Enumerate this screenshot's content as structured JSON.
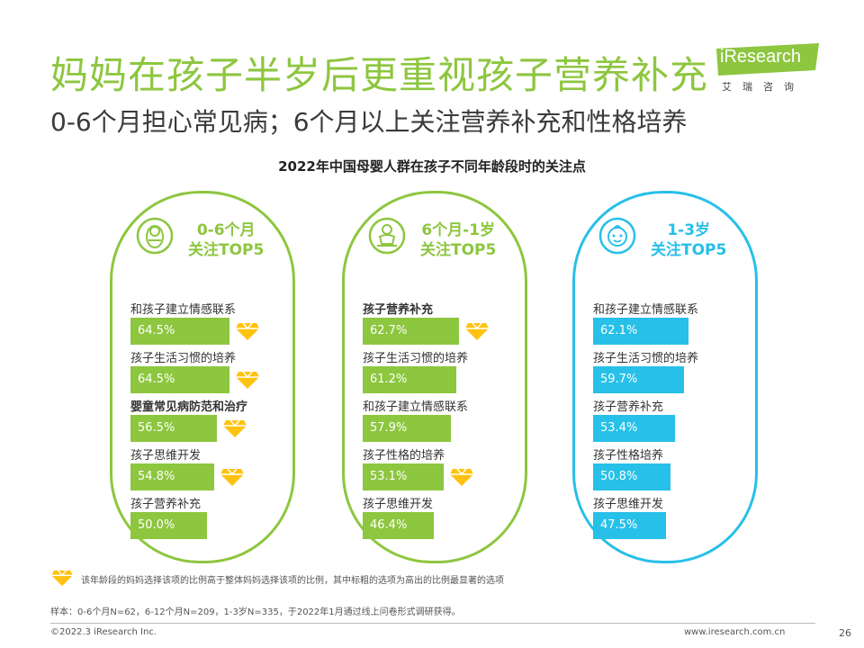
{
  "header": {
    "title": "妈妈在孩子半岁后更重视孩子营养补充",
    "subtitle": "0-6个月担心常见病；6个月以上关注营养补充和性格培养",
    "logo_word": "iResearch",
    "logo_cn": "艾瑞咨询"
  },
  "chart_data": {
    "type": "bar",
    "title": "2022年中国母婴人群在孩子不同年龄段时的关注点",
    "unit": "%",
    "xlim": [
      0,
      100
    ],
    "panels": [
      {
        "heading_line1": "0-6个月",
        "heading_line2": "关注TOP5",
        "icon": "swaddled-baby-icon",
        "color": "#8dc63f",
        "items": [
          {
            "label": "和孩子建立情感联系",
            "value": 64.5,
            "value_label": "64.5%",
            "highlight": true,
            "bold": false
          },
          {
            "label": "孩子生活习惯的培养",
            "value": 64.5,
            "value_label": "64.5%",
            "highlight": true,
            "bold": false
          },
          {
            "label": "婴童常见病防范和治疗",
            "value": 56.5,
            "value_label": "56.5%",
            "highlight": true,
            "bold": true
          },
          {
            "label": "孩子思维开发",
            "value": 54.8,
            "value_label": "54.8%",
            "highlight": true,
            "bold": false
          },
          {
            "label": "孩子营养补充",
            "value": 50.0,
            "value_label": "50.0%",
            "highlight": false,
            "bold": false
          }
        ]
      },
      {
        "heading_line1": "6个月-1岁",
        "heading_line2": "关注TOP5",
        "icon": "sitting-baby-icon",
        "color": "#8dc63f",
        "items": [
          {
            "label": "孩子营养补充",
            "value": 62.7,
            "value_label": "62.7%",
            "highlight": true,
            "bold": true
          },
          {
            "label": "孩子生活习惯的培养",
            "value": 61.2,
            "value_label": "61.2%",
            "highlight": false,
            "bold": false
          },
          {
            "label": "和孩子建立情感联系",
            "value": 57.9,
            "value_label": "57.9%",
            "highlight": false,
            "bold": false
          },
          {
            "label": "孩子性格的培养",
            "value": 53.1,
            "value_label": "53.1%",
            "highlight": true,
            "bold": false
          },
          {
            "label": "孩子思维开发",
            "value": 46.4,
            "value_label": "46.4%",
            "highlight": false,
            "bold": false
          }
        ]
      },
      {
        "heading_line1": "1-3岁",
        "heading_line2": "关注TOP5",
        "icon": "toddler-face-icon",
        "color": "#27c0e8",
        "items": [
          {
            "label": "和孩子建立情感联系",
            "value": 62.1,
            "value_label": "62.1%",
            "highlight": false,
            "bold": false
          },
          {
            "label": "孩子生活习惯的培养",
            "value": 59.7,
            "value_label": "59.7%",
            "highlight": false,
            "bold": false
          },
          {
            "label": "孩子营养补充",
            "value": 53.4,
            "value_label": "53.4%",
            "highlight": false,
            "bold": false
          },
          {
            "label": "孩子性格培养",
            "value": 50.8,
            "value_label": "50.8%",
            "highlight": false,
            "bold": false
          },
          {
            "label": "孩子思维开发",
            "value": 47.5,
            "value_label": "47.5%",
            "highlight": false,
            "bold": false
          }
        ]
      }
    ],
    "legend_text": "该年龄段的妈妈选择该项的比例高于整体妈妈选择该项的比例，其中标粗的选项为高出的比例最显著的选项",
    "legend_icon": "diamond-icon"
  },
  "footer": {
    "sample": "样本：0-6个月N=62，6-12个月N=209，1-3岁N=335，于2022年1月通过线上问卷形式调研获得。",
    "copyright": "©2022.3 iResearch Inc.",
    "website": "www.iresearch.com.cn",
    "page": "26"
  }
}
